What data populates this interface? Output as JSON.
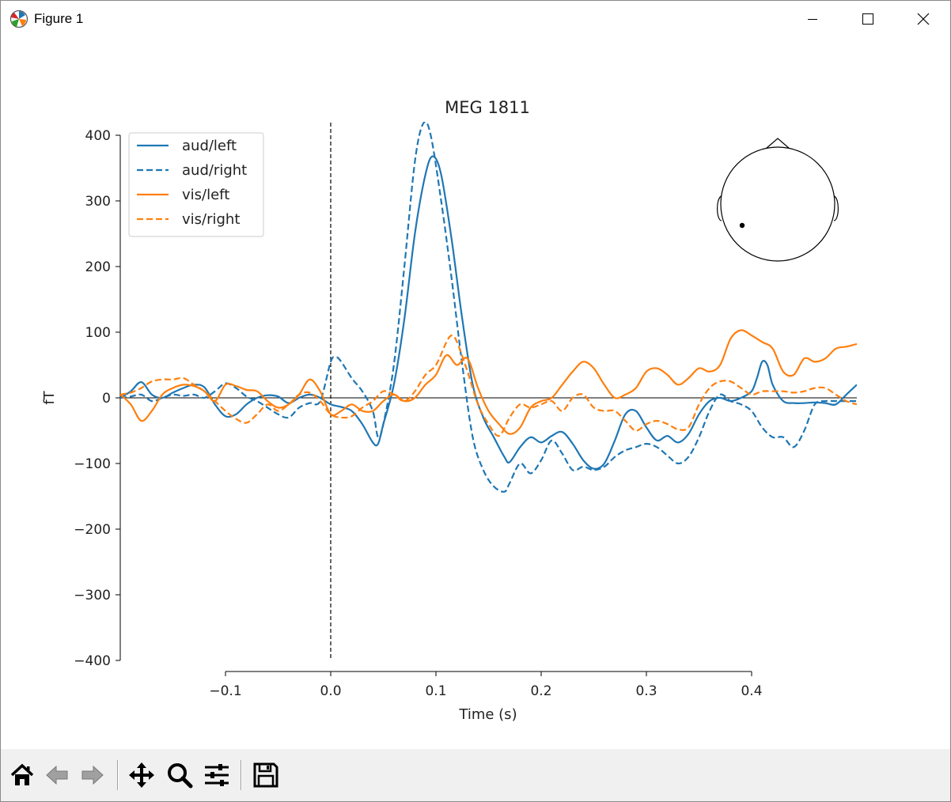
{
  "window": {
    "title": "Figure 1"
  },
  "toolbar": {
    "buttons": [
      {
        "name": "home-icon"
      },
      {
        "name": "back-icon"
      },
      {
        "name": "forward-icon"
      },
      {
        "name": "pan-icon"
      },
      {
        "name": "zoom-icon"
      },
      {
        "name": "configure-subplots-icon"
      },
      {
        "name": "save-icon"
      }
    ]
  },
  "chart_data": {
    "type": "line",
    "title": "MEG 1811",
    "xlabel": "Time (s)",
    "ylabel": "fT",
    "xlim": [
      -0.2,
      0.5
    ],
    "ylim": [
      -400,
      400
    ],
    "xticks": [
      -0.1,
      0.0,
      0.1,
      0.2,
      0.3,
      0.4
    ],
    "xtick_labels": [
      "−0.1",
      "0.0",
      "0.1",
      "0.2",
      "0.3",
      "0.4"
    ],
    "yticks": [
      400,
      300,
      200,
      100,
      0,
      -100,
      -200,
      -300,
      -400
    ],
    "ytick_labels": [
      "400",
      "300",
      "200",
      "100",
      "0",
      "−100",
      "−200",
      "−300",
      "−400"
    ],
    "legend_position": "top-left",
    "grid": false,
    "annotations": [
      "vertical dashed line at t=0",
      "horizontal line at 0",
      "sensor location head inset (top-right)"
    ],
    "series": [
      {
        "name": "aud/left",
        "color": "#1f77b4",
        "dash": "solid",
        "points": [
          [
            -0.2,
            0
          ],
          [
            -0.19,
            10
          ],
          [
            -0.18,
            24
          ],
          [
            -0.17,
            5
          ],
          [
            -0.16,
            0
          ],
          [
            -0.15,
            8
          ],
          [
            -0.14,
            15
          ],
          [
            -0.13,
            20
          ],
          [
            -0.12,
            16
          ],
          [
            -0.11,
            -10
          ],
          [
            -0.1,
            -28
          ],
          [
            -0.09,
            -25
          ],
          [
            -0.08,
            -10
          ],
          [
            -0.07,
            0
          ],
          [
            -0.06,
            4
          ],
          [
            -0.05,
            2
          ],
          [
            -0.04,
            -8
          ],
          [
            -0.03,
            0
          ],
          [
            -0.02,
            5
          ],
          [
            -0.01,
            0
          ],
          [
            0.0,
            -10
          ],
          [
            0.01,
            -14
          ],
          [
            0.02,
            -20
          ],
          [
            0.03,
            -40
          ],
          [
            0.04,
            -68
          ],
          [
            0.045,
            -70
          ],
          [
            0.05,
            -40
          ],
          [
            0.06,
            20
          ],
          [
            0.07,
            120
          ],
          [
            0.08,
            250
          ],
          [
            0.09,
            340
          ],
          [
            0.097,
            368
          ],
          [
            0.105,
            340
          ],
          [
            0.115,
            240
          ],
          [
            0.125,
            120
          ],
          [
            0.135,
            20
          ],
          [
            0.145,
            -30
          ],
          [
            0.155,
            -60
          ],
          [
            0.165,
            -90
          ],
          [
            0.17,
            -98
          ],
          [
            0.18,
            -75
          ],
          [
            0.19,
            -60
          ],
          [
            0.2,
            -68
          ],
          [
            0.21,
            -58
          ],
          [
            0.22,
            -52
          ],
          [
            0.23,
            -70
          ],
          [
            0.24,
            -95
          ],
          [
            0.25,
            -108
          ],
          [
            0.26,
            -100
          ],
          [
            0.27,
            -65
          ],
          [
            0.28,
            -25
          ],
          [
            0.29,
            -20
          ],
          [
            0.3,
            -45
          ],
          [
            0.31,
            -65
          ],
          [
            0.32,
            -58
          ],
          [
            0.33,
            -68
          ],
          [
            0.34,
            -55
          ],
          [
            0.35,
            -25
          ],
          [
            0.36,
            -5
          ],
          [
            0.37,
            0
          ],
          [
            0.38,
            -5
          ],
          [
            0.39,
            0
          ],
          [
            0.4,
            10
          ],
          [
            0.405,
            30
          ],
          [
            0.41,
            55
          ],
          [
            0.415,
            50
          ],
          [
            0.42,
            20
          ],
          [
            0.43,
            -5
          ],
          [
            0.44,
            -8
          ],
          [
            0.45,
            -8
          ],
          [
            0.46,
            -7
          ],
          [
            0.47,
            -8
          ],
          [
            0.48,
            -10
          ],
          [
            0.49,
            5
          ],
          [
            0.5,
            20
          ]
        ]
      },
      {
        "name": "aud/right",
        "color": "#1f77b4",
        "dash": "dashed",
        "points": [
          [
            -0.2,
            0
          ],
          [
            -0.19,
            2
          ],
          [
            -0.18,
            5
          ],
          [
            -0.17,
            -5
          ],
          [
            -0.16,
            0
          ],
          [
            -0.15,
            5
          ],
          [
            -0.14,
            3
          ],
          [
            -0.13,
            5
          ],
          [
            -0.12,
            0
          ],
          [
            -0.11,
            10
          ],
          [
            -0.1,
            22
          ],
          [
            -0.09,
            15
          ],
          [
            -0.08,
            2
          ],
          [
            -0.07,
            -5
          ],
          [
            -0.06,
            -15
          ],
          [
            -0.05,
            -25
          ],
          [
            -0.04,
            -30
          ],
          [
            -0.03,
            -15
          ],
          [
            -0.02,
            -8
          ],
          [
            -0.01,
            -5
          ],
          [
            0.0,
            55
          ],
          [
            0.005,
            62
          ],
          [
            0.01,
            55
          ],
          [
            0.02,
            30
          ],
          [
            0.03,
            10
          ],
          [
            0.04,
            -20
          ],
          [
            0.045,
            -60
          ],
          [
            0.05,
            -40
          ],
          [
            0.06,
            50
          ],
          [
            0.07,
            200
          ],
          [
            0.08,
            360
          ],
          [
            0.088,
            418
          ],
          [
            0.095,
            400
          ],
          [
            0.105,
            300
          ],
          [
            0.115,
            180
          ],
          [
            0.125,
            50
          ],
          [
            0.135,
            -60
          ],
          [
            0.145,
            -110
          ],
          [
            0.155,
            -135
          ],
          [
            0.165,
            -143
          ],
          [
            0.17,
            -130
          ],
          [
            0.18,
            -100
          ],
          [
            0.19,
            -115
          ],
          [
            0.2,
            -95
          ],
          [
            0.21,
            -65
          ],
          [
            0.22,
            -85
          ],
          [
            0.23,
            -110
          ],
          [
            0.24,
            -105
          ],
          [
            0.25,
            -110
          ],
          [
            0.26,
            -105
          ],
          [
            0.27,
            -90
          ],
          [
            0.28,
            -80
          ],
          [
            0.29,
            -75
          ],
          [
            0.3,
            -70
          ],
          [
            0.31,
            -75
          ],
          [
            0.32,
            -88
          ],
          [
            0.33,
            -100
          ],
          [
            0.34,
            -90
          ],
          [
            0.35,
            -60
          ],
          [
            0.36,
            -20
          ],
          [
            0.37,
            5
          ],
          [
            0.38,
            -5
          ],
          [
            0.39,
            -10
          ],
          [
            0.4,
            -20
          ],
          [
            0.41,
            -45
          ],
          [
            0.42,
            -60
          ],
          [
            0.43,
            -60
          ],
          [
            0.44,
            -75
          ],
          [
            0.45,
            -50
          ],
          [
            0.46,
            -10
          ],
          [
            0.47,
            -5
          ],
          [
            0.48,
            -5
          ],
          [
            0.49,
            -5
          ],
          [
            0.5,
            -5
          ]
        ]
      },
      {
        "name": "vis/left",
        "color": "#ff7f0e",
        "dash": "solid",
        "points": [
          [
            -0.2,
            5
          ],
          [
            -0.19,
            -10
          ],
          [
            -0.18,
            -35
          ],
          [
            -0.17,
            -20
          ],
          [
            -0.16,
            5
          ],
          [
            -0.15,
            15
          ],
          [
            -0.14,
            20
          ],
          [
            -0.13,
            18
          ],
          [
            -0.12,
            10
          ],
          [
            -0.11,
            -5
          ],
          [
            -0.1,
            20
          ],
          [
            -0.09,
            18
          ],
          [
            -0.08,
            12
          ],
          [
            -0.07,
            10
          ],
          [
            -0.06,
            -5
          ],
          [
            -0.05,
            -15
          ],
          [
            -0.04,
            -10
          ],
          [
            -0.03,
            5
          ],
          [
            -0.02,
            28
          ],
          [
            -0.01,
            10
          ],
          [
            0.0,
            -25
          ],
          [
            0.01,
            -20
          ],
          [
            0.02,
            -10
          ],
          [
            0.03,
            -20
          ],
          [
            0.04,
            -20
          ],
          [
            0.05,
            -5
          ],
          [
            0.06,
            5
          ],
          [
            0.07,
            -5
          ],
          [
            0.08,
            0
          ],
          [
            0.09,
            20
          ],
          [
            0.1,
            35
          ],
          [
            0.11,
            65
          ],
          [
            0.12,
            50
          ],
          [
            0.13,
            60
          ],
          [
            0.14,
            15
          ],
          [
            0.15,
            -20
          ],
          [
            0.16,
            -40
          ],
          [
            0.17,
            -55
          ],
          [
            0.18,
            -45
          ],
          [
            0.19,
            -15
          ],
          [
            0.2,
            -5
          ],
          [
            0.21,
            0
          ],
          [
            0.22,
            20
          ],
          [
            0.23,
            40
          ],
          [
            0.24,
            55
          ],
          [
            0.25,
            45
          ],
          [
            0.26,
            20
          ],
          [
            0.27,
            0
          ],
          [
            0.28,
            5
          ],
          [
            0.29,
            15
          ],
          [
            0.3,
            40
          ],
          [
            0.31,
            45
          ],
          [
            0.32,
            35
          ],
          [
            0.33,
            20
          ],
          [
            0.34,
            30
          ],
          [
            0.35,
            45
          ],
          [
            0.36,
            40
          ],
          [
            0.37,
            50
          ],
          [
            0.38,
            90
          ],
          [
            0.39,
            103
          ],
          [
            0.4,
            95
          ],
          [
            0.41,
            85
          ],
          [
            0.42,
            75
          ],
          [
            0.43,
            40
          ],
          [
            0.44,
            35
          ],
          [
            0.45,
            60
          ],
          [
            0.46,
            55
          ],
          [
            0.47,
            60
          ],
          [
            0.48,
            75
          ],
          [
            0.49,
            78
          ],
          [
            0.5,
            82
          ]
        ]
      },
      {
        "name": "vis/right",
        "color": "#ff7f0e",
        "dash": "dashed",
        "points": [
          [
            -0.2,
            5
          ],
          [
            -0.19,
            8
          ],
          [
            -0.18,
            15
          ],
          [
            -0.17,
            25
          ],
          [
            -0.16,
            28
          ],
          [
            -0.15,
            28
          ],
          [
            -0.14,
            30
          ],
          [
            -0.13,
            20
          ],
          [
            -0.12,
            10
          ],
          [
            -0.11,
            -5
          ],
          [
            -0.1,
            -20
          ],
          [
            -0.09,
            -32
          ],
          [
            -0.08,
            -38
          ],
          [
            -0.07,
            -25
          ],
          [
            -0.06,
            -10
          ],
          [
            -0.05,
            -20
          ],
          [
            -0.04,
            -10
          ],
          [
            -0.03,
            5
          ],
          [
            -0.02,
            8
          ],
          [
            -0.01,
            -5
          ],
          [
            0.0,
            -25
          ],
          [
            0.01,
            -30
          ],
          [
            0.02,
            -28
          ],
          [
            0.03,
            -15
          ],
          [
            0.04,
            -5
          ],
          [
            0.05,
            10
          ],
          [
            0.06,
            5
          ],
          [
            0.07,
            -5
          ],
          [
            0.08,
            10
          ],
          [
            0.09,
            35
          ],
          [
            0.1,
            50
          ],
          [
            0.11,
            85
          ],
          [
            0.115,
            95
          ],
          [
            0.12,
            85
          ],
          [
            0.13,
            40
          ],
          [
            0.14,
            -10
          ],
          [
            0.15,
            -40
          ],
          [
            0.16,
            -58
          ],
          [
            0.17,
            -30
          ],
          [
            0.18,
            -10
          ],
          [
            0.19,
            -15
          ],
          [
            0.2,
            -10
          ],
          [
            0.21,
            -5
          ],
          [
            0.22,
            -20
          ],
          [
            0.23,
            0
          ],
          [
            0.24,
            5
          ],
          [
            0.25,
            -15
          ],
          [
            0.26,
            -20
          ],
          [
            0.27,
            -20
          ],
          [
            0.28,
            -35
          ],
          [
            0.29,
            -50
          ],
          [
            0.3,
            -40
          ],
          [
            0.31,
            -35
          ],
          [
            0.32,
            -40
          ],
          [
            0.33,
            -48
          ],
          [
            0.34,
            -45
          ],
          [
            0.35,
            -10
          ],
          [
            0.36,
            15
          ],
          [
            0.37,
            25
          ],
          [
            0.38,
            25
          ],
          [
            0.39,
            15
          ],
          [
            0.4,
            5
          ],
          [
            0.41,
            10
          ],
          [
            0.42,
            10
          ],
          [
            0.43,
            10
          ],
          [
            0.44,
            8
          ],
          [
            0.45,
            10
          ],
          [
            0.46,
            15
          ],
          [
            0.47,
            15
          ],
          [
            0.48,
            5
          ],
          [
            0.49,
            -5
          ],
          [
            0.5,
            -10
          ]
        ]
      }
    ]
  }
}
